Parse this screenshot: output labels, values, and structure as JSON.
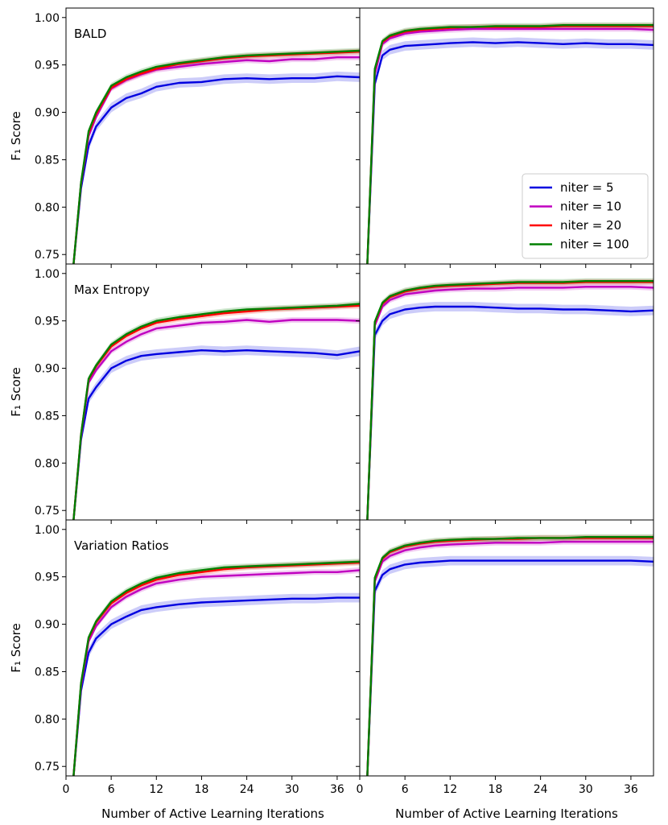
{
  "chart_data": {
    "type": "line",
    "xlabel": "Number of Active Learning Iterations",
    "ylabel": "F₁ Score",
    "xlim": [
      0,
      39
    ],
    "ylim": [
      0.74,
      1.01
    ],
    "xticks": [
      0,
      6,
      12,
      18,
      24,
      30,
      36
    ],
    "yticks": [
      0.75,
      0.8,
      0.85,
      0.9,
      0.95,
      1.0
    ],
    "grid": false,
    "legend": {
      "placement": "lower-right",
      "entries": [
        "niter = 5",
        "niter = 10",
        "niter = 20",
        "niter = 100"
      ]
    },
    "series_colors": {
      "niter = 5": "#0000e0",
      "niter = 10": "#c000c0",
      "niter = 20": "#ff0000",
      "niter = 100": "#008000"
    },
    "rows": [
      {
        "label": "BALD",
        "left": {
          "x": [
            1,
            2,
            3,
            4,
            6,
            8,
            10,
            12,
            15,
            18,
            21,
            24,
            27,
            30,
            33,
            36,
            39
          ],
          "series": [
            {
              "name": "niter = 5",
              "values": [
                0.74,
                0.82,
                0.865,
                0.885,
                0.905,
                0.915,
                0.92,
                0.927,
                0.931,
                0.932,
                0.935,
                0.936,
                0.935,
                0.936,
                0.936,
                0.938,
                0.937
              ]
            },
            {
              "name": "niter = 10",
              "values": [
                0.74,
                0.825,
                0.875,
                0.895,
                0.925,
                0.934,
                0.94,
                0.945,
                0.948,
                0.951,
                0.953,
                0.955,
                0.954,
                0.956,
                0.956,
                0.958,
                0.958
              ]
            },
            {
              "name": "niter = 20",
              "values": [
                0.74,
                0.825,
                0.878,
                0.898,
                0.926,
                0.935,
                0.941,
                0.946,
                0.951,
                0.954,
                0.957,
                0.959,
                0.96,
                0.961,
                0.962,
                0.963,
                0.964
              ]
            },
            {
              "name": "niter = 100",
              "values": [
                0.74,
                0.826,
                0.88,
                0.9,
                0.928,
                0.937,
                0.943,
                0.948,
                0.952,
                0.955,
                0.958,
                0.96,
                0.961,
                0.962,
                0.963,
                0.964,
                0.965
              ]
            }
          ]
        },
        "right": {
          "x": [
            1,
            2,
            3,
            4,
            6,
            8,
            10,
            12,
            15,
            18,
            21,
            24,
            27,
            30,
            33,
            36,
            39
          ],
          "series": [
            {
              "name": "niter = 5",
              "values": [
                0.74,
                0.93,
                0.96,
                0.966,
                0.97,
                0.971,
                0.972,
                0.973,
                0.974,
                0.973,
                0.974,
                0.973,
                0.972,
                0.973,
                0.972,
                0.972,
                0.971
              ]
            },
            {
              "name": "niter = 10",
              "values": [
                0.74,
                0.94,
                0.972,
                0.978,
                0.983,
                0.985,
                0.986,
                0.987,
                0.988,
                0.988,
                0.988,
                0.988,
                0.988,
                0.988,
                0.988,
                0.988,
                0.987
              ]
            },
            {
              "name": "niter = 20",
              "values": [
                0.74,
                0.945,
                0.974,
                0.98,
                0.985,
                0.987,
                0.988,
                0.989,
                0.99,
                0.99,
                0.99,
                0.99,
                0.991,
                0.991,
                0.991,
                0.991,
                0.991
              ]
            },
            {
              "name": "niter = 100",
              "values": [
                0.74,
                0.946,
                0.975,
                0.981,
                0.986,
                0.988,
                0.989,
                0.99,
                0.99,
                0.991,
                0.991,
                0.991,
                0.992,
                0.992,
                0.992,
                0.992,
                0.992
              ]
            }
          ]
        }
      },
      {
        "label": "Max Entropy",
        "left": {
          "x": [
            1,
            2,
            3,
            4,
            6,
            8,
            10,
            12,
            15,
            18,
            21,
            24,
            27,
            30,
            33,
            36,
            39
          ],
          "series": [
            {
              "name": "niter = 5",
              "values": [
                0.74,
                0.825,
                0.868,
                0.88,
                0.9,
                0.908,
                0.913,
                0.915,
                0.917,
                0.919,
                0.918,
                0.919,
                0.918,
                0.917,
                0.916,
                0.914,
                0.918
              ]
            },
            {
              "name": "niter = 10",
              "values": [
                0.74,
                0.828,
                0.885,
                0.898,
                0.918,
                0.928,
                0.936,
                0.942,
                0.945,
                0.948,
                0.949,
                0.951,
                0.949,
                0.951,
                0.951,
                0.951,
                0.95
              ]
            },
            {
              "name": "niter = 20",
              "values": [
                0.74,
                0.83,
                0.888,
                0.902,
                0.923,
                0.934,
                0.942,
                0.948,
                0.952,
                0.955,
                0.958,
                0.96,
                0.962,
                0.963,
                0.964,
                0.965,
                0.966
              ]
            },
            {
              "name": "niter = 100",
              "values": [
                0.74,
                0.83,
                0.889,
                0.903,
                0.925,
                0.936,
                0.944,
                0.95,
                0.954,
                0.957,
                0.96,
                0.962,
                0.963,
                0.964,
                0.965,
                0.966,
                0.968
              ]
            }
          ]
        },
        "right": {
          "x": [
            1,
            2,
            3,
            4,
            6,
            8,
            10,
            12,
            15,
            18,
            21,
            24,
            27,
            30,
            33,
            36,
            39
          ],
          "series": [
            {
              "name": "niter = 5",
              "values": [
                0.74,
                0.935,
                0.95,
                0.957,
                0.962,
                0.964,
                0.965,
                0.965,
                0.965,
                0.964,
                0.963,
                0.963,
                0.962,
                0.962,
                0.961,
                0.96,
                0.961
              ]
            },
            {
              "name": "niter = 10",
              "values": [
                0.74,
                0.945,
                0.965,
                0.972,
                0.978,
                0.98,
                0.982,
                0.983,
                0.984,
                0.984,
                0.985,
                0.985,
                0.985,
                0.986,
                0.986,
                0.986,
                0.985
              ]
            },
            {
              "name": "niter = 20",
              "values": [
                0.74,
                0.948,
                0.968,
                0.975,
                0.981,
                0.984,
                0.986,
                0.987,
                0.988,
                0.989,
                0.99,
                0.99,
                0.99,
                0.991,
                0.991,
                0.991,
                0.991
              ]
            },
            {
              "name": "niter = 100",
              "values": [
                0.74,
                0.949,
                0.969,
                0.976,
                0.982,
                0.985,
                0.987,
                0.988,
                0.989,
                0.99,
                0.991,
                0.991,
                0.991,
                0.992,
                0.992,
                0.992,
                0.992
              ]
            }
          ]
        }
      },
      {
        "label": "Variation Ratios",
        "left": {
          "x": [
            1,
            2,
            3,
            4,
            6,
            8,
            10,
            12,
            15,
            18,
            21,
            24,
            27,
            30,
            33,
            36,
            39
          ],
          "series": [
            {
              "name": "niter = 5",
              "values": [
                0.74,
                0.83,
                0.87,
                0.885,
                0.9,
                0.908,
                0.915,
                0.918,
                0.921,
                0.923,
                0.924,
                0.925,
                0.926,
                0.927,
                0.927,
                0.928,
                0.928
              ]
            },
            {
              "name": "niter = 10",
              "values": [
                0.74,
                0.835,
                0.882,
                0.898,
                0.918,
                0.929,
                0.937,
                0.943,
                0.947,
                0.95,
                0.951,
                0.952,
                0.953,
                0.954,
                0.955,
                0.955,
                0.957
              ]
            },
            {
              "name": "niter = 20",
              "values": [
                0.74,
                0.837,
                0.885,
                0.902,
                0.922,
                0.933,
                0.941,
                0.947,
                0.952,
                0.955,
                0.958,
                0.96,
                0.961,
                0.962,
                0.963,
                0.964,
                0.965
              ]
            },
            {
              "name": "niter = 100",
              "values": [
                0.74,
                0.838,
                0.886,
                0.903,
                0.924,
                0.935,
                0.943,
                0.949,
                0.954,
                0.957,
                0.96,
                0.961,
                0.962,
                0.963,
                0.964,
                0.965,
                0.966
              ]
            }
          ]
        },
        "right": {
          "x": [
            1,
            2,
            3,
            4,
            6,
            8,
            10,
            12,
            15,
            18,
            21,
            24,
            27,
            30,
            33,
            36,
            39
          ],
          "series": [
            {
              "name": "niter = 5",
              "values": [
                0.74,
                0.935,
                0.952,
                0.958,
                0.963,
                0.965,
                0.966,
                0.967,
                0.967,
                0.967,
                0.967,
                0.967,
                0.967,
                0.967,
                0.967,
                0.967,
                0.966
              ]
            },
            {
              "name": "niter = 10",
              "values": [
                0.74,
                0.945,
                0.966,
                0.972,
                0.978,
                0.981,
                0.983,
                0.984,
                0.985,
                0.986,
                0.986,
                0.986,
                0.987,
                0.987,
                0.987,
                0.987,
                0.987
              ]
            },
            {
              "name": "niter = 20",
              "values": [
                0.74,
                0.948,
                0.969,
                0.976,
                0.982,
                0.985,
                0.987,
                0.988,
                0.989,
                0.99,
                0.99,
                0.991,
                0.991,
                0.991,
                0.991,
                0.991,
                0.991
              ]
            },
            {
              "name": "niter = 100",
              "values": [
                0.74,
                0.949,
                0.97,
                0.977,
                0.983,
                0.986,
                0.988,
                0.989,
                0.99,
                0.99,
                0.991,
                0.991,
                0.991,
                0.992,
                0.992,
                0.992,
                0.992
              ]
            }
          ]
        }
      }
    ]
  }
}
